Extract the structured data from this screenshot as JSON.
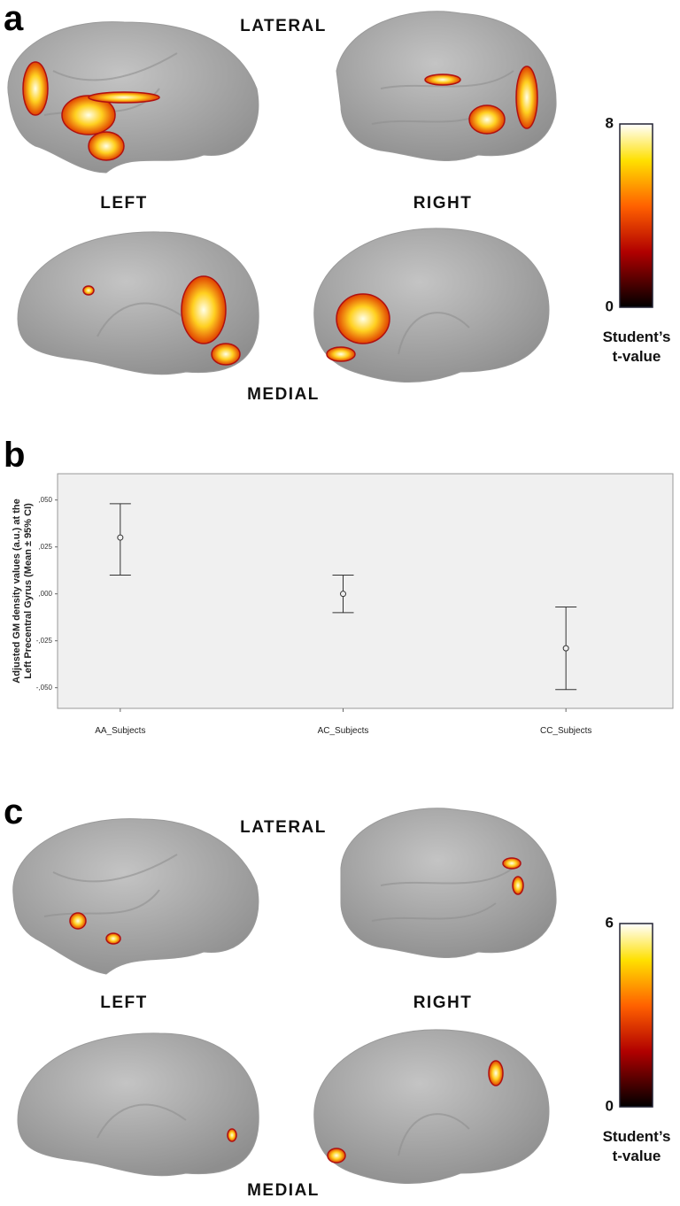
{
  "panel_a": {
    "label": "a",
    "lateral": "LATERAL",
    "left": "LEFT",
    "right": "RIGHT",
    "medial": "MEDIAL",
    "colorbar": {
      "ticks": [
        0,
        8
      ],
      "label": "Student’s t-value"
    }
  },
  "chart_data": {
    "type": "errorbar",
    "panel_label": "b",
    "y_label": [
      "Adjusted GM density values (a.u.) at the",
      "Left Precentral Gyrus (Mean ± 95% CI)"
    ],
    "categories": [
      "AA_Subjects",
      "AC_Subjects",
      "CC_Subjects"
    ],
    "values": [
      0.03,
      0.0,
      -0.029
    ],
    "ci_low": [
      0.01,
      -0.01,
      -0.051
    ],
    "ci_high": [
      0.048,
      0.01,
      -0.007
    ],
    "color": "#333333",
    "background": "#f0f0f0",
    "ylim": [
      -0.061,
      0.064
    ],
    "yticks": [
      {
        "value": 0.05,
        "label": ",050"
      },
      {
        "value": 0.025,
        "label": ",025"
      },
      {
        "value": 0,
        "label": ",000"
      },
      {
        "value": -0.025,
        "label": "-,025"
      },
      {
        "value": -0.05,
        "label": "-,050"
      }
    ]
  },
  "panel_c": {
    "label": "c",
    "lateral": "LATERAL",
    "left": "LEFT",
    "right": "RIGHT",
    "medial": "MEDIAL",
    "colorbar": {
      "ticks": [
        0,
        6
      ],
      "label": "Student’s t-value"
    }
  }
}
